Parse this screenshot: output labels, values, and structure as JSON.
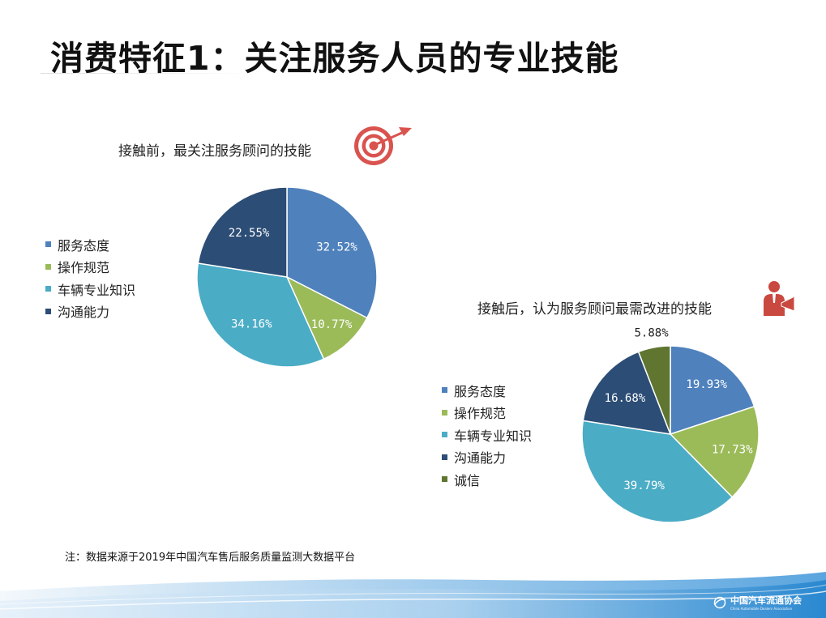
{
  "title": "消费特征1：关注服务人员的专业技能",
  "colors": {
    "service": "#4f81bd",
    "operation": "#9bbb59",
    "vehicle": "#4bacc6",
    "communication": "#2c4d75",
    "integrity": "#5f7530",
    "accent_red": "#d9534f"
  },
  "icons": {
    "target": "target-icon",
    "person": "presenter-icon",
    "logo": "association-logo-icon"
  },
  "chart_data": [
    {
      "type": "pie",
      "title": "接触前，最关注服务顾问的技能",
      "categories": [
        "服务态度",
        "操作规范",
        "车辆专业知识",
        "沟通能力"
      ],
      "values": [
        32.52,
        10.77,
        34.16,
        22.55
      ],
      "labels": [
        "32.52%",
        "10.77%",
        "34.16%",
        "22.55%"
      ],
      "colors": [
        "#4f81bd",
        "#9bbb59",
        "#4bacc6",
        "#2c4d75"
      ],
      "legend": "left"
    },
    {
      "type": "pie",
      "title": "接触后，认为服务顾问最需改进的技能",
      "categories": [
        "服务态度",
        "操作规范",
        "车辆专业知识",
        "沟通能力",
        "诚信"
      ],
      "values": [
        19.93,
        17.73,
        39.79,
        16.68,
        5.88
      ],
      "labels": [
        "19.93%",
        "17.73%",
        "39.79%",
        "16.68%",
        "5.88%"
      ],
      "colors": [
        "#4f81bd",
        "#9bbb59",
        "#4bacc6",
        "#2c4d75",
        "#5f7530"
      ],
      "legend": "left"
    }
  ],
  "note": "注：数据来源于2019年中国汽车售后服务质量监测大数据平台",
  "footer": {
    "logo_text": "中国汽车流通协会",
    "logo_subtext": "China Automobile Dealers Association"
  }
}
